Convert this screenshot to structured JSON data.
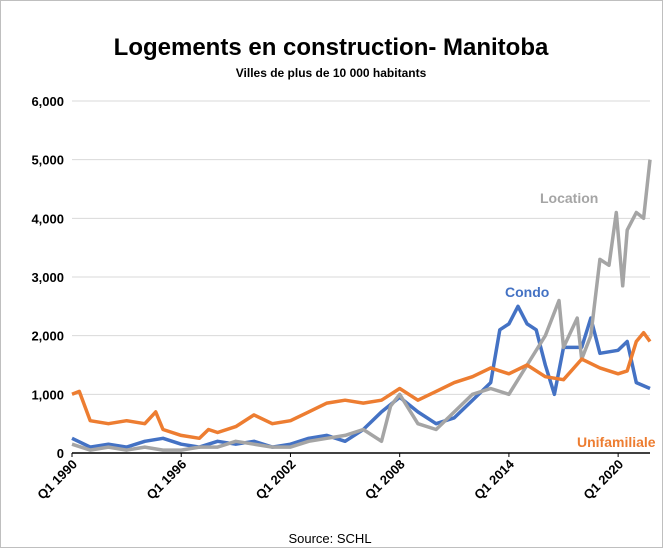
{
  "chart_data": {
    "type": "line",
    "title": "Logements en construction- Manitoba",
    "subtitle": "Villes de plus de 10 000 habitants",
    "source": "Source: SCHL",
    "xlim": [
      1990,
      2021.75
    ],
    "xticks": [
      {
        "value": 1990,
        "label": "Q1 1990"
      },
      {
        "value": 1996,
        "label": "Q1 1996"
      },
      {
        "value": 2002,
        "label": "Q1 2002"
      },
      {
        "value": 2008,
        "label": "Q1 2008"
      },
      {
        "value": 2014,
        "label": "Q1 2014"
      },
      {
        "value": 2020,
        "label": "Q1 2020"
      }
    ],
    "ylim": [
      0,
      6000
    ],
    "yticks": [
      {
        "value": 0,
        "label": "0"
      },
      {
        "value": 1000,
        "label": "1,000"
      },
      {
        "value": 2000,
        "label": "2,000"
      },
      {
        "value": 3000,
        "label": "3,000"
      },
      {
        "value": 4000,
        "label": "4,000"
      },
      {
        "value": 5000,
        "label": "5,000"
      },
      {
        "value": 6000,
        "label": "6,000"
      }
    ],
    "grid": true,
    "series": [
      {
        "name": "Condo",
        "color": "#4472c4",
        "x": [
          1990,
          1991,
          1992,
          1993,
          1994,
          1995,
          1996,
          1997,
          1998,
          1999,
          2000,
          2001,
          2002,
          2003,
          2004,
          2005,
          2006,
          2007,
          2008,
          2009,
          2010,
          2011,
          2012,
          2013,
          2013.5,
          2014,
          2014.5,
          2015,
          2015.5,
          2016,
          2016.5,
          2017,
          2018,
          2018.5,
          2019,
          2020,
          2020.5,
          2021,
          2021.75
        ],
        "values": [
          250,
          100,
          150,
          100,
          200,
          250,
          150,
          100,
          200,
          150,
          200,
          100,
          150,
          250,
          300,
          200,
          400,
          700,
          950,
          700,
          500,
          600,
          900,
          1200,
          2100,
          2200,
          2500,
          2200,
          2100,
          1500,
          1000,
          1800,
          1800,
          2300,
          1700,
          1750,
          1900,
          1200,
          1100
        ]
      },
      {
        "name": "Location",
        "color": "#a5a5a5",
        "x": [
          1990,
          1991,
          1992,
          1993,
          1994,
          1995,
          1996,
          1997,
          1998,
          1999,
          2000,
          2001,
          2002,
          2003,
          2004,
          2005,
          2006,
          2007,
          2007.5,
          2008,
          2009,
          2010,
          2011,
          2012,
          2013,
          2014,
          2015,
          2016,
          2016.75,
          2017,
          2017.75,
          2018,
          2018.5,
          2019,
          2019.5,
          2019.9,
          2020.25,
          2020.5,
          2021,
          2021.4,
          2021.75
        ],
        "values": [
          150,
          50,
          100,
          50,
          100,
          50,
          50,
          100,
          100,
          200,
          150,
          100,
          100,
          200,
          250,
          300,
          400,
          200,
          800,
          1000,
          500,
          400,
          700,
          1000,
          1100,
          1000,
          1500,
          2000,
          2600,
          1800,
          2300,
          1600,
          2000,
          3300,
          3200,
          4100,
          2850,
          3800,
          4100,
          4000,
          5000
        ]
      },
      {
        "name": "Unifamiliale",
        "color": "#ed7d31",
        "x": [
          1990,
          1990.4,
          1991,
          1992,
          1993,
          1994,
          1994.6,
          1995,
          1996,
          1997,
          1997.5,
          1998,
          1999,
          2000,
          2001,
          2002,
          2003,
          2004,
          2005,
          2006,
          2007,
          2008,
          2009,
          2010,
          2011,
          2012,
          2013,
          2014,
          2015,
          2016,
          2017,
          2018,
          2019,
          2020,
          2020.5,
          2021,
          2021.4,
          2021.75
        ],
        "values": [
          1000,
          1050,
          550,
          500,
          550,
          500,
          700,
          400,
          300,
          250,
          400,
          350,
          450,
          650,
          500,
          550,
          700,
          850,
          900,
          850,
          900,
          1100,
          900,
          1050,
          1200,
          1300,
          1450,
          1350,
          1500,
          1300,
          1250,
          1600,
          1450,
          1350,
          1400,
          1900,
          2050,
          1900
        ]
      }
    ]
  }
}
